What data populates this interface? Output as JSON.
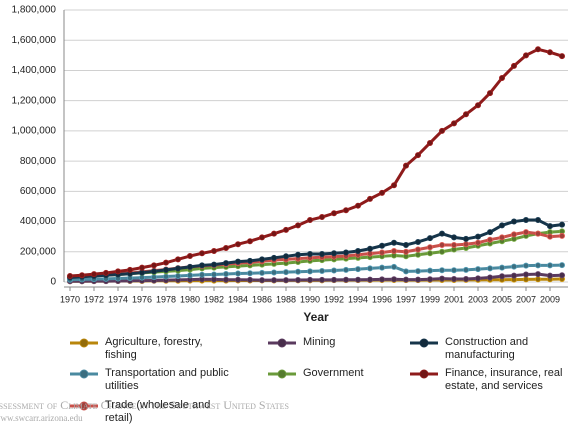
{
  "chart_data": {
    "type": "line",
    "x_label": "Year",
    "categories": [
      "1970",
      null,
      "1972",
      null,
      "1974",
      null,
      "1976",
      null,
      "1978",
      null,
      "1980",
      null,
      "1982",
      null,
      "1984",
      null,
      "1986",
      null,
      "1988",
      null,
      "1990",
      null,
      "1992",
      null,
      "1994",
      null,
      "1996",
      null,
      "1997",
      null,
      "1999",
      null,
      "2001",
      null,
      "2003",
      null,
      "2005",
      null,
      "2007",
      null,
      "2009",
      null
    ],
    "ylim": [
      0,
      1800000
    ],
    "yticks": [
      0,
      {
        "value": 200000,
        "label": "200,000"
      },
      {
        "value": 400000,
        "label": "400,000"
      },
      {
        "value": 600000,
        "label": "600,000"
      },
      {
        "value": 800000,
        "label": "800,000"
      },
      {
        "value": 1000000,
        "label": "1,000,000"
      },
      {
        "value": 1200000,
        "label": "1,200,000"
      },
      {
        "value": 1400000,
        "label": "1,400,000"
      },
      {
        "value": 1600000,
        "label": "1,600,000"
      },
      {
        "value": 1800000,
        "label": "1,800,000"
      }
    ],
    "grid": true,
    "series": [
      {
        "name": "Agriculture, forestry, fishing",
        "color": "#b8860b",
        "values": [
          5000,
          5000,
          6000,
          6000,
          7000,
          7000,
          7000,
          8000,
          8000,
          8000,
          9000,
          9000,
          9000,
          9000,
          10000,
          10000,
          10000,
          10000,
          11000,
          11000,
          11000,
          11000,
          12000,
          12000,
          12000,
          12000,
          13000,
          13000,
          12000,
          12000,
          13000,
          13000,
          13000,
          14000,
          14000,
          15000,
          15000,
          16000,
          17000,
          18000,
          18000,
          20000
        ]
      },
      {
        "name": "Mining",
        "color": "#5a3a5e",
        "values": [
          5000,
          5000,
          6000,
          6000,
          7000,
          8000,
          9000,
          10000,
          12000,
          14000,
          16000,
          18000,
          17000,
          15000,
          15000,
          14000,
          12000,
          12000,
          12000,
          13000,
          14000,
          14000,
          14000,
          15000,
          15000,
          16000,
          17000,
          18000,
          16000,
          16000,
          18000,
          22000,
          20000,
          20000,
          24000,
          30000,
          38000,
          42000,
          50000,
          52000,
          42000,
          45000
        ]
      },
      {
        "name": "Construction and manufacturing",
        "color": "#16354a",
        "values": [
          30000,
          35000,
          40000,
          45000,
          50000,
          55000,
          62000,
          70000,
          80000,
          90000,
          100000,
          110000,
          115000,
          125000,
          135000,
          140000,
          150000,
          160000,
          170000,
          180000,
          185000,
          185000,
          190000,
          195000,
          205000,
          220000,
          240000,
          260000,
          245000,
          265000,
          290000,
          320000,
          295000,
          285000,
          300000,
          330000,
          375000,
          400000,
          410000,
          410000,
          370000,
          380000
        ]
      },
      {
        "name": "Transportation and public utilities",
        "color": "#4a8aa0",
        "values": [
          15000,
          17000,
          19000,
          21000,
          23000,
          26000,
          29000,
          32000,
          36000,
          40000,
          44000,
          48000,
          50000,
          53000,
          56000,
          58000,
          60000,
          63000,
          65000,
          68000,
          70000,
          73000,
          76000,
          80000,
          85000,
          90000,
          95000,
          100000,
          70000,
          72000,
          75000,
          78000,
          78000,
          80000,
          85000,
          90000,
          95000,
          102000,
          108000,
          110000,
          110000,
          112000
        ]
      },
      {
        "name": "Government",
        "color": "#6a9a3a",
        "values": [
          35000,
          38000,
          42000,
          45000,
          50000,
          55000,
          60000,
          65000,
          70000,
          75000,
          82000,
          90000,
          95000,
          100000,
          105000,
          110000,
          115000,
          120000,
          125000,
          132000,
          140000,
          145000,
          150000,
          155000,
          160000,
          165000,
          170000,
          175000,
          170000,
          180000,
          190000,
          200000,
          215000,
          225000,
          240000,
          255000,
          270000,
          285000,
          305000,
          320000,
          330000,
          335000
        ]
      },
      {
        "name": "Finance, insurance, real estate, and services",
        "color": "#8e1b1b",
        "values": [
          40000,
          45000,
          52000,
          60000,
          70000,
          80000,
          95000,
          110000,
          128000,
          150000,
          172000,
          190000,
          205000,
          225000,
          250000,
          270000,
          295000,
          320000,
          345000,
          375000,
          410000,
          430000,
          455000,
          475000,
          505000,
          550000,
          590000,
          640000,
          770000,
          840000,
          920000,
          1000000,
          1050000,
          1110000,
          1170000,
          1250000,
          1350000,
          1430000,
          1500000,
          1540000,
          1520000,
          1495000
        ]
      },
      {
        "name": "Trade (wholesale and retail)",
        "color": "#c9504a",
        "values": [
          35000,
          40000,
          45000,
          50000,
          55000,
          60000,
          67000,
          75000,
          83000,
          92000,
          100000,
          107000,
          112000,
          118000,
          125000,
          130000,
          137000,
          145000,
          150000,
          155000,
          160000,
          165000,
          168000,
          172000,
          180000,
          188000,
          195000,
          205000,
          200000,
          215000,
          230000,
          245000,
          245000,
          250000,
          260000,
          280000,
          295000,
          315000,
          330000,
          320000,
          300000,
          305000
        ]
      }
    ]
  },
  "footer": {
    "title": "Assessment of Climate Change in the Southwest United States",
    "url": "www.swcarr.arizona.edu"
  }
}
